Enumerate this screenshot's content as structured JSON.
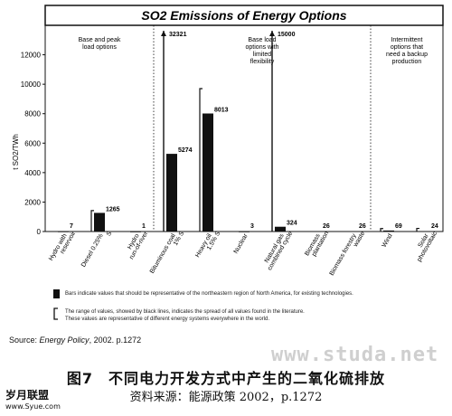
{
  "chart_data": {
    "type": "bar",
    "title": "SO2 Emissions of Energy Options",
    "ylabel": "t SO2/TWh",
    "ylim": [
      0,
      14000
    ],
    "yticks": [
      0,
      2000,
      4000,
      6000,
      8000,
      10000,
      12000
    ],
    "categories": [
      "Hydro with reservoir",
      "Diesel 0.25% S",
      "Hydro run-of-river",
      "Bituminous coal 1% S",
      "Heavy oil 1.5% S",
      "Nuclear",
      "Natural gas combined cycle",
      "Biomass plantation",
      "Biomass forestry waste",
      "Wind",
      "Solar photovoltaic"
    ],
    "values": [
      7,
      1265,
      1,
      5274,
      8013,
      3,
      324,
      26,
      26,
      69,
      24
    ],
    "value_labels": [
      "7",
      "1265",
      "1",
      "5274",
      "8013",
      "3",
      "324",
      "26",
      "26",
      "69",
      "24"
    ],
    "range_lines": [
      null,
      [
        0,
        1420
      ],
      null,
      [
        0,
        32321
      ],
      [
        0,
        9700
      ],
      null,
      [
        0,
        15000
      ],
      null,
      null,
      [
        0,
        200
      ],
      [
        0,
        210
      ]
    ],
    "offscale_labels": [
      {
        "bar_index": 3,
        "text": "32321"
      },
      {
        "bar_index": 6,
        "text": "15000"
      }
    ],
    "sections": [
      {
        "text": "Base and peak load options",
        "from": 0,
        "to": 2
      },
      {
        "text": "Base load options with limited flexibility",
        "from": 3,
        "to": 8
      },
      {
        "text": "Intermittent options that need a backup production",
        "from": 9,
        "to": 10
      }
    ],
    "grid": false
  },
  "legend": {
    "bar_text": "Bars indicate values that should be representative of the northeastern region of North America, for existing technologies.",
    "range_text_1": "The range of values, showed by black lines, indicates the spread of all values found in the literature.",
    "range_text_2": "These values are representative of different energy systems everywhere in the world."
  },
  "source": {
    "prefix": "Source: ",
    "journal": "Energy Policy",
    "suffix": ", 2002. p.1272"
  },
  "watermark": "www.studa.net",
  "caption": {
    "figure": "图7　不同电力开发方式中产生的二氧化硫排放",
    "source_line": "资料来源：能源政策 2002，p.1272"
  },
  "site": {
    "logo": "岁月联盟",
    "url": "www.Syue.com"
  },
  "colors": {
    "bar": "#111111",
    "text": "#111111"
  }
}
